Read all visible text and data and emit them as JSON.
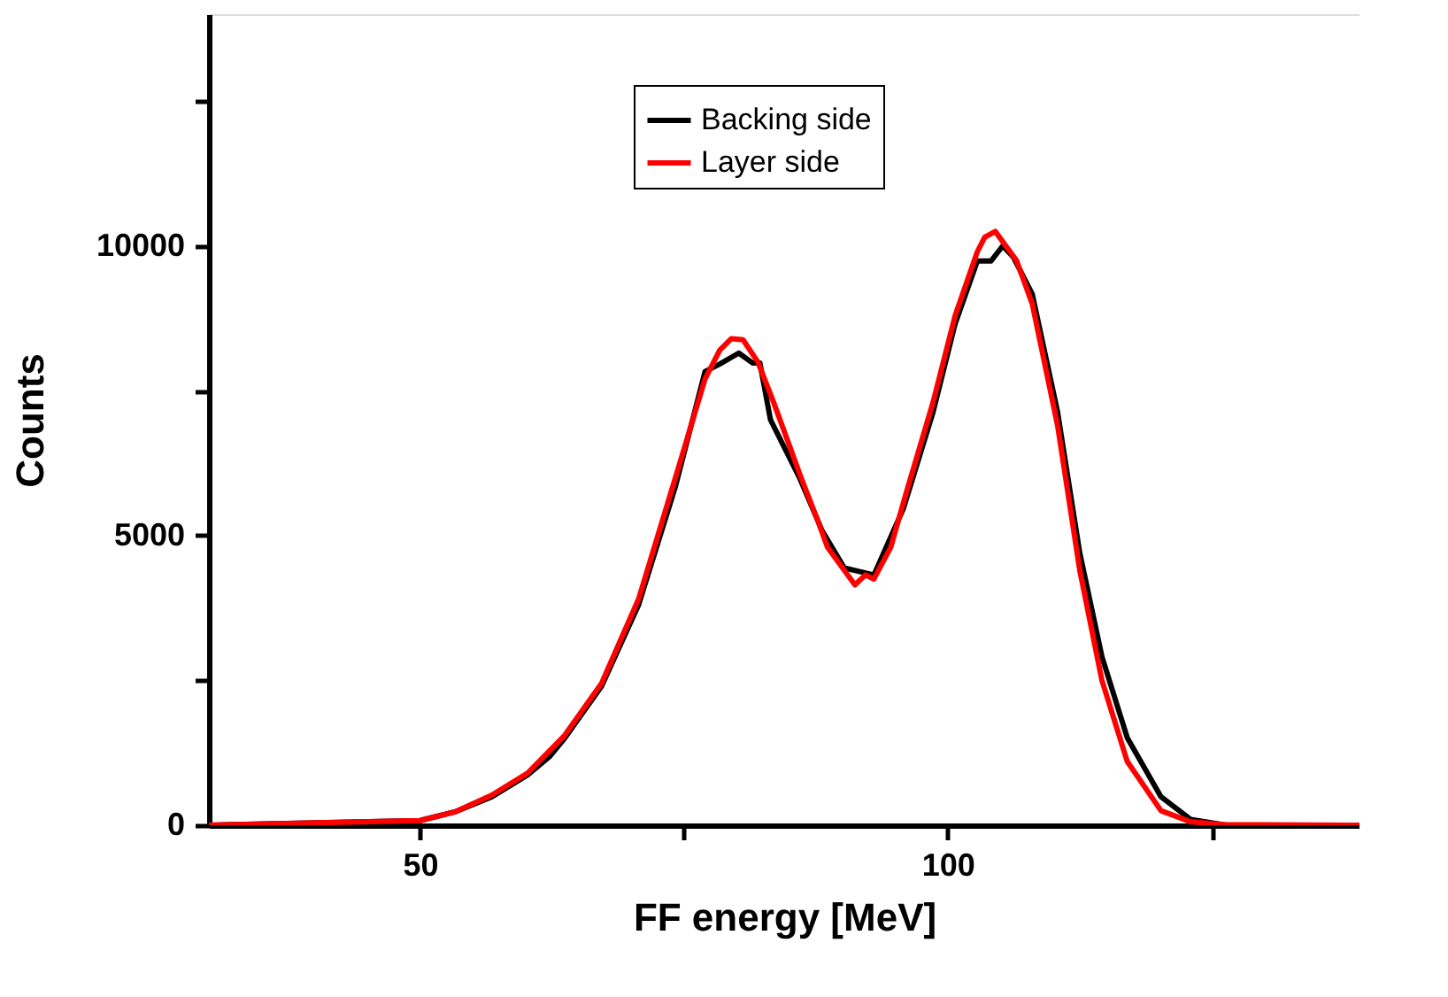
{
  "chart_data": {
    "type": "line",
    "xlabel": "FF energy [MeV]",
    "ylabel": "Counts",
    "xlim": [
      30,
      139
    ],
    "ylim": [
      0,
      14000
    ],
    "xticks": [
      50,
      {
        "value": 75,
        "label": null
      },
      100,
      {
        "value": 125,
        "label": null
      }
    ],
    "yticks": [
      0,
      {
        "value": 2500,
        "label": null
      },
      5000,
      {
        "value": 7500,
        "label": null
      },
      10000,
      {
        "value": 12500,
        "label": null
      }
    ],
    "grid": false,
    "legend": "top",
    "marker": "none",
    "line_style": "solid",
    "series": [
      {
        "name": "Backing side",
        "color": "#000000",
        "x": [
          30,
          50,
          53.3,
          56.8,
          60.2,
          62.3,
          63.7,
          67.2,
          70.7,
          74.2,
          77,
          78.4,
          80.2,
          81.5,
          82.2,
          83.2,
          86,
          88.1,
          90.2,
          91.6,
          93,
          95.8,
          98.6,
          100.7,
          102.8,
          104.1,
          105.2,
          106.2,
          108,
          110.4,
          112.5,
          114.6,
          117,
          120.2,
          123,
          126.4,
          139
        ],
        "values": [
          0,
          80,
          230,
          490,
          870,
          1190,
          1500,
          2400,
          3800,
          5850,
          7830,
          7960,
          8150,
          7980,
          7980,
          7000,
          5980,
          5080,
          4440,
          4380,
          4320,
          5470,
          7130,
          8660,
          9740,
          9740,
          10000,
          9810,
          9170,
          7130,
          4700,
          2910,
          1510,
          490,
          100,
          0,
          0
        ]
      },
      {
        "name": "Layer side",
        "color": "#ff0000",
        "x": [
          30,
          50,
          53.3,
          56.8,
          60.2,
          63.7,
          67.2,
          70.7,
          74.2,
          77,
          78.4,
          79.5,
          80.6,
          82,
          83.5,
          86,
          87.8,
          88.6,
          91.2,
          92.2,
          93,
          94.6,
          96,
          98.6,
          100.7,
          102.8,
          103.5,
          104.5,
          105.5,
          106.5,
          108,
          110.4,
          112.5,
          114.6,
          117,
          120.2,
          123,
          126,
          139
        ],
        "values": [
          0,
          80,
          230,
          520,
          900,
          1550,
          2450,
          3900,
          6000,
          7700,
          8200,
          8400,
          8380,
          8000,
          7300,
          6050,
          5200,
          4800,
          4150,
          4320,
          4250,
          4800,
          5700,
          7300,
          8800,
          9900,
          10150,
          10250,
          10000,
          9750,
          9000,
          6900,
          4400,
          2500,
          1100,
          250,
          60,
          10,
          0
        ]
      }
    ]
  }
}
